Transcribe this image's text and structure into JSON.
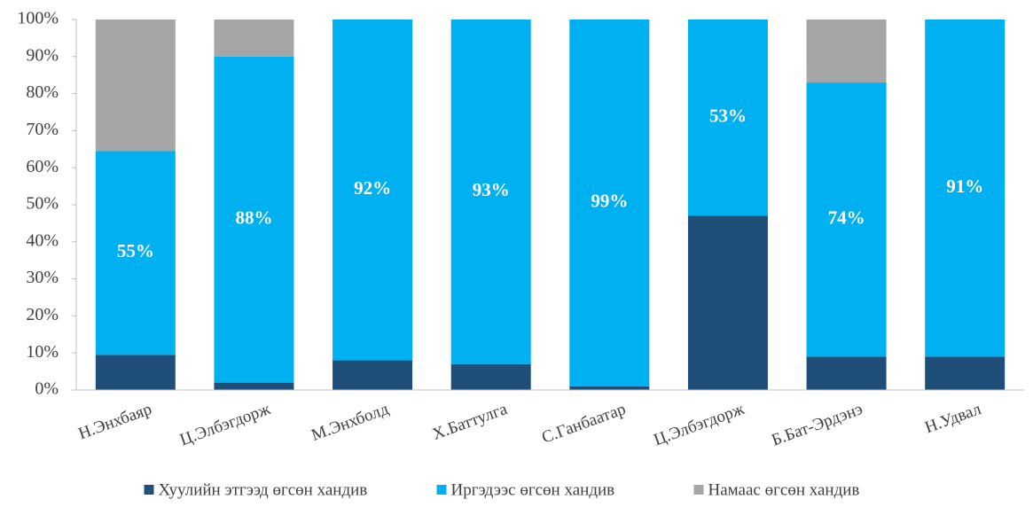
{
  "chart_data": {
    "type": "stacked_bar",
    "categories": [
      "Н.Энхбаяр",
      "Ц.Элбэгдорж",
      "М.Энхболд",
      "Х.Баттулга",
      "С.Ганбаатар",
      "Ц.Элбэгдорж",
      "Б.Бат-Эрдэнэ",
      "Н.Удвал"
    ],
    "series": [
      {
        "name": "Хуулийн этгээд өгсөн хандив",
        "color": "#1f4e79",
        "values": [
          9.5,
          2,
          8,
          7,
          1,
          47,
          9,
          9
        ]
      },
      {
        "name": "Иргэдээс өгсөн хандив",
        "color": "#00b0f0",
        "values": [
          55,
          88,
          92,
          93,
          99,
          53,
          74,
          91
        ],
        "value_labels": [
          "55%",
          "88%",
          "92%",
          "93%",
          "99%",
          "53%",
          "74%",
          "91%"
        ]
      },
      {
        "name": "Намаас өгсөн хандив",
        "color": "#a6a6a6",
        "values": [
          35.5,
          10,
          0,
          0,
          0,
          0,
          17,
          0
        ]
      }
    ],
    "ylim": [
      0,
      100
    ],
    "yticks": [
      {
        "value": 0,
        "label": "0%"
      },
      {
        "value": 10,
        "label": "10%"
      },
      {
        "value": 20,
        "label": "20%"
      },
      {
        "value": 30,
        "label": "30%"
      },
      {
        "value": 40,
        "label": "40%"
      },
      {
        "value": 50,
        "label": "50%"
      },
      {
        "value": 60,
        "label": "60%"
      },
      {
        "value": 70,
        "label": "70%"
      },
      {
        "value": 80,
        "label": "80%"
      },
      {
        "value": 90,
        "label": "90%"
      },
      {
        "value": 100,
        "label": "100%"
      }
    ],
    "grid": false,
    "legend": "bottom"
  }
}
